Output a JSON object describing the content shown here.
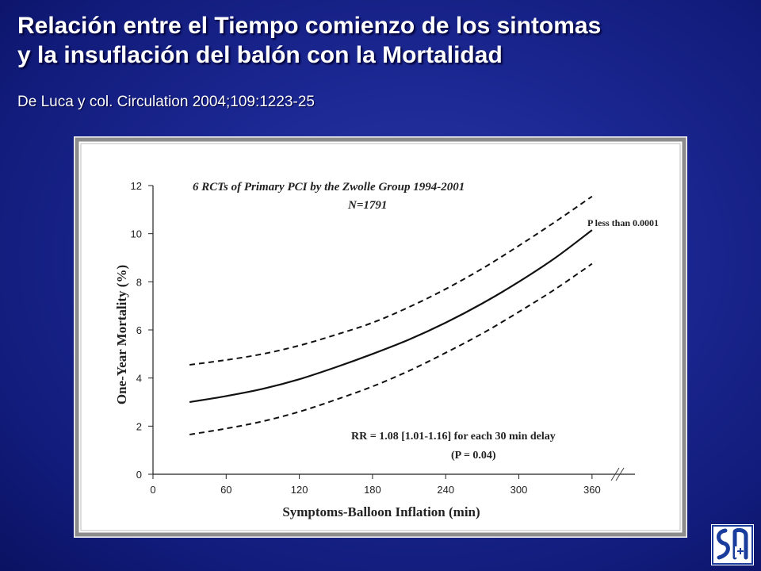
{
  "slide": {
    "title_line1": "Relación entre el Tiempo comienzo de los sintomas",
    "title_line2": "y la insuflación del balón con la Mortalidad",
    "citation": "De Luca y col. Circulation 2004;109:1223-25"
  },
  "logo": {
    "icon": "sociedad-logo-icon"
  },
  "chart_data": {
    "type": "line",
    "title": "6 RCTs of Primary PCI by the Zwolle Group 1994-2001",
    "subtitle": "N=1791",
    "xlabel": "Symptoms-Balloon Inflation (min)",
    "ylabel": "One-Year Mortality (%)",
    "xlim": [
      0,
      390
    ],
    "ylim": [
      0,
      12
    ],
    "xticks": [
      0,
      60,
      120,
      180,
      240,
      300,
      360
    ],
    "yticks": [
      0,
      2,
      4,
      6,
      8,
      10,
      12
    ],
    "grid": false,
    "axis_break_x": true,
    "annotations": {
      "p_value": "P less than 0.0001",
      "rr_line1": "RR = 1.08 [1.01-1.16] for each 30 min delay",
      "rr_line2": "(P = 0.04)"
    },
    "x": [
      30,
      60,
      90,
      120,
      150,
      180,
      210,
      240,
      270,
      300,
      330,
      360
    ],
    "series": [
      {
        "style": "dashed",
        "values": [
          4.55,
          4.75,
          5.0,
          5.35,
          5.8,
          6.3,
          6.95,
          7.7,
          8.55,
          9.5,
          10.5,
          11.55
        ]
      },
      {
        "style": "solid",
        "values": [
          3.0,
          3.25,
          3.55,
          3.95,
          4.45,
          5.0,
          5.6,
          6.3,
          7.1,
          8.0,
          9.0,
          10.15
        ]
      },
      {
        "style": "dashed",
        "values": [
          1.65,
          1.9,
          2.2,
          2.6,
          3.1,
          3.65,
          4.3,
          5.05,
          5.85,
          6.75,
          7.7,
          8.75
        ]
      }
    ]
  }
}
